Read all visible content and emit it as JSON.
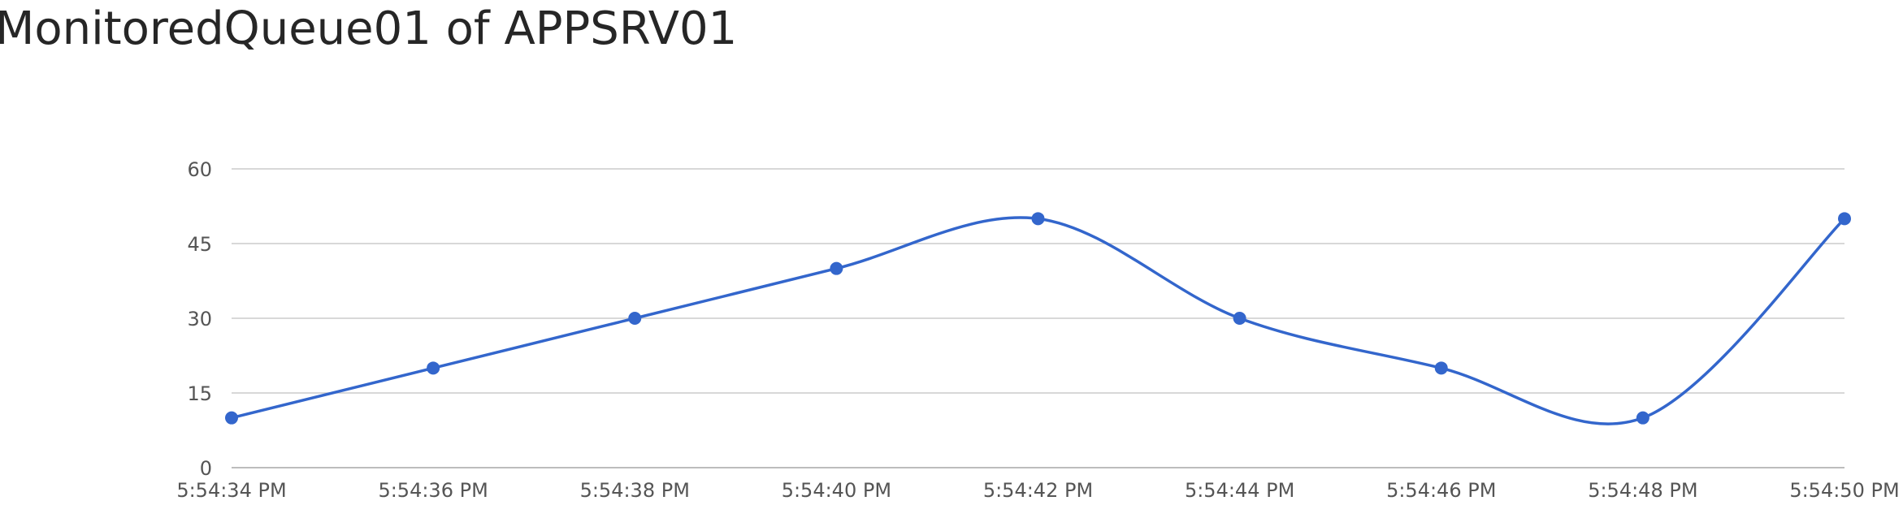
{
  "chart_data": {
    "type": "line",
    "title": "MonitoredQueue01 of APPSRV01",
    "xlabel": "",
    "ylabel": "",
    "x": [
      "5:54:34 PM",
      "5:54:36 PM",
      "5:54:38 PM",
      "5:54:40 PM",
      "5:54:42 PM",
      "5:54:44 PM",
      "5:54:46 PM",
      "5:54:48 PM",
      "5:54:50 PM"
    ],
    "series": [
      {
        "values": [
          10,
          20,
          30,
          40,
          50,
          30,
          20,
          10,
          50
        ]
      }
    ],
    "ylim": [
      0,
      60
    ],
    "yticks": [
      0,
      15,
      30,
      45,
      60
    ],
    "smooth": true,
    "grid": true,
    "legend": "none",
    "colors": {
      "line": "#3366cc",
      "grid": "#cccccc",
      "axis": "#bdbdbd",
      "tick_text": "#555555",
      "title_text": "#262626"
    }
  }
}
